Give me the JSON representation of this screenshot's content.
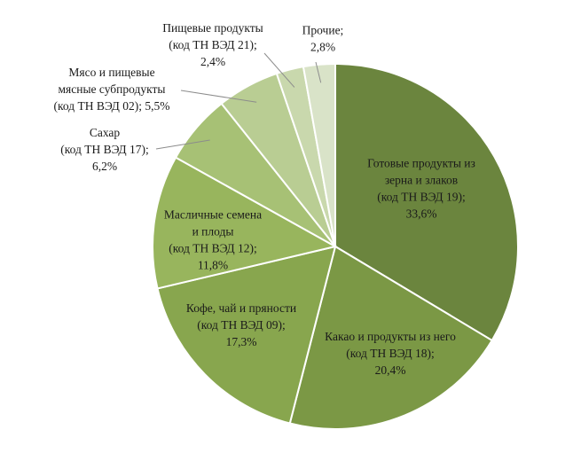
{
  "chart_data": {
    "type": "pie",
    "title": "",
    "start_angle_deg": 0,
    "direction": "clockwise",
    "slices": [
      {
        "label_lines": [
          "Готовые продукты из",
          "зерна и злаков",
          "(код ТН ВЭД 19);",
          "33,6%"
        ],
        "value": 33.6,
        "color": "#6b853e"
      },
      {
        "label_lines": [
          "Какао и продукты из него",
          "(код ТН ВЭД 18);",
          "20,4%"
        ],
        "value": 20.4,
        "color": "#7b9845"
      },
      {
        "label_lines": [
          "Кофе, чай и пряности",
          "(код ТН ВЭД 09);",
          "17,3%"
        ],
        "value": 17.3,
        "color": "#88a64e"
      },
      {
        "label_lines": [
          "Масличные семена",
          "и плоды",
          "(код ТН ВЭД 12);",
          "11,8%"
        ],
        "value": 11.8,
        "color": "#98b55d"
      },
      {
        "label_lines": [
          "Сахар",
          "(код ТН ВЭД 17);",
          "6,2%"
        ],
        "value": 6.2,
        "color": "#a7c175"
      },
      {
        "label_lines": [
          "Мясо и пищевые",
          "мясные субпродукты",
          "(код ТН ВЭД 02); 5,5%"
        ],
        "value": 5.5,
        "color": "#b9cd93"
      },
      {
        "label_lines": [
          "Пищевые продукты",
          "(код ТН ВЭД 21);",
          "2,4%"
        ],
        "value": 2.4,
        "color": "#c9d8ad"
      },
      {
        "label_lines": [
          "Прочие;",
          "2,8%"
        ],
        "value": 2.8,
        "color": "#d9e3c8"
      }
    ]
  }
}
